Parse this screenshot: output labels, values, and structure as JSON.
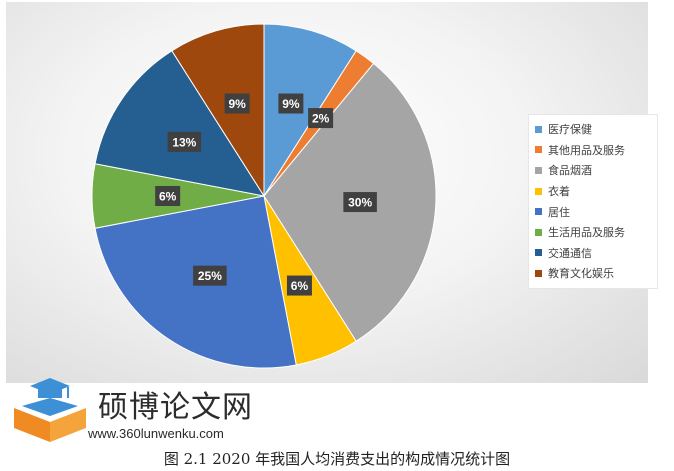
{
  "chart_data": {
    "type": "pie",
    "categories": [
      "医疗保健",
      "其他用品及服务",
      "食品烟酒",
      "衣着",
      "居住",
      "生活用品及服务",
      "交通通信",
      "教育文化娱乐"
    ],
    "values": [
      9,
      2,
      30,
      6,
      25,
      6,
      13,
      9
    ],
    "value_labels": [
      "9%",
      "2%",
      "30%",
      "6%",
      "25%",
      "6%",
      "13%",
      "9%"
    ],
    "colors": [
      "#5b9bd5",
      "#ed7d31",
      "#a5a5a5",
      "#ffc000",
      "#4472c4",
      "#70ad47",
      "#255e91",
      "#9e480e"
    ],
    "legend_position": "right",
    "start_angle_deg": 0,
    "direction": "clockwise"
  },
  "watermark": {
    "site_name": "硕博论文网",
    "url": "www.360lunwenku.com"
  },
  "caption": "图 2.1 2020 年我国人均消费支出的构成情况统计图"
}
